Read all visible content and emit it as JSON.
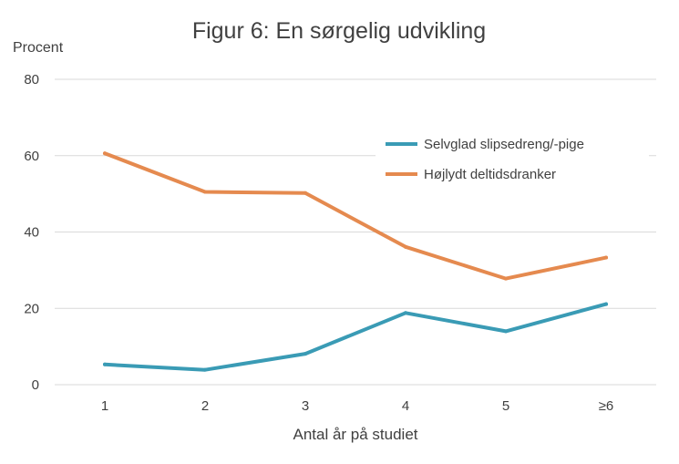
{
  "chart_data": {
    "type": "line",
    "title": "Figur 6: En sørgelig udvikling",
    "ylabel": "Procent",
    "xlabel": "Antal år på studiet",
    "categories": [
      "1",
      "2",
      "3",
      "4",
      "5",
      "≥6"
    ],
    "ylim": [
      0,
      80
    ],
    "yticks": [
      0,
      20,
      40,
      60,
      80
    ],
    "grid": true,
    "legend_position": "top-right",
    "series": [
      {
        "name": "Selvglad slipsedreng/-pige",
        "color": "#3a9bb5",
        "values": [
          5.3,
          3.9,
          8.1,
          18.8,
          14.0,
          21.1
        ]
      },
      {
        "name": "Højlydt deltidsdranker",
        "color": "#e58a4f",
        "values": [
          60.6,
          50.5,
          50.2,
          36.1,
          27.8,
          33.3
        ]
      }
    ]
  }
}
